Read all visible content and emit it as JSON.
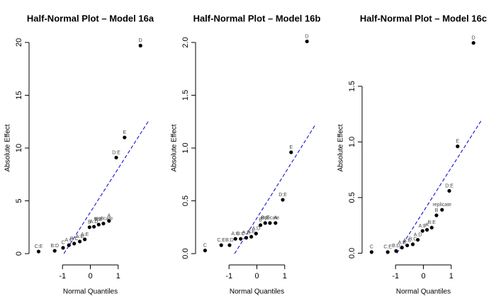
{
  "chart_data": [
    {
      "type": "scatter",
      "title": "Half-Normal Plot – Model 16a",
      "xlabel": "Normal Quantiles",
      "ylabel": "Absolute Effect",
      "x": [
        -1.86,
        -1.28,
        -0.98,
        -0.77,
        -0.58,
        -0.38,
        -0.2,
        -0.03,
        0.13,
        0.3,
        0.47,
        0.67,
        0.93,
        1.23,
        1.8
      ],
      "y": [
        0.2,
        0.27,
        0.55,
        0.8,
        0.95,
        1.15,
        1.35,
        2.5,
        2.55,
        2.75,
        2.85,
        3.1,
        9.1,
        11.0,
        19.7
      ],
      "labels": [
        "C:E",
        "B:D",
        "C",
        "A:C",
        "B:C",
        "A:B",
        "A:E",
        "B",
        "A:D",
        "B:E",
        "replicate",
        "A",
        "D:E",
        "E",
        "D"
      ],
      "color": "#000000",
      "xlim": [
        -2.1,
        2.1
      ],
      "ylim": [
        -0.8,
        20.8
      ],
      "xticks": [
        -1,
        0,
        1
      ],
      "yticks": [
        0,
        5,
        10,
        15,
        20
      ],
      "ref_line": {
        "x": [
          -0.95,
          2.1
        ],
        "y": [
          0,
          12.6
        ],
        "color": "#0000cc"
      }
    },
    {
      "type": "scatter",
      "title": "Half-Normal Plot – Model 16b",
      "xlabel": "Normal Quantiles",
      "ylabel": "Absolute Effect",
      "x": [
        -1.86,
        -1.28,
        -0.98,
        -0.77,
        -0.58,
        -0.38,
        -0.2,
        -0.03,
        0.13,
        0.3,
        0.47,
        0.67,
        0.93,
        1.23,
        1.8
      ],
      "y": [
        0.03,
        0.08,
        0.08,
        0.14,
        0.14,
        0.15,
        0.16,
        0.19,
        0.27,
        0.29,
        0.29,
        0.29,
        0.51,
        0.96,
        2.01
      ],
      "labels": [
        "C",
        "C:E",
        "B:D",
        "A:C",
        "B:C",
        "A:B",
        "A:E",
        "A:D",
        "B",
        "B:E",
        "replicate",
        "A",
        "D:E",
        "E",
        "D"
      ],
      "color": "#000000",
      "xlim": [
        -2.1,
        2.1
      ],
      "ylim": [
        -0.08,
        2.08
      ],
      "xticks": [
        -1,
        0,
        1
      ],
      "yticks": [
        {
          "value": 0,
          "label": "0.0"
        },
        0.5,
        {
          "value": 1,
          "label": "1.0"
        },
        1.5,
        {
          "value": 2,
          "label": "2.0"
        }
      ],
      "ref_line": {
        "x": [
          -0.8,
          2.1
        ],
        "y": [
          0,
          1.22
        ],
        "color": "#0000cc"
      }
    },
    {
      "type": "scatter",
      "title": "Half-Normal Plot – Model 16c",
      "xlabel": "Normal Quantiles",
      "ylabel": "Absolute Effect",
      "x": [
        -1.86,
        -1.28,
        -0.98,
        -0.77,
        -0.58,
        -0.38,
        -0.2,
        -0.03,
        0.13,
        0.3,
        0.47,
        0.67,
        0.93,
        1.23,
        1.8
      ],
      "y": [
        0.01,
        0.01,
        0.02,
        0.05,
        0.07,
        0.08,
        0.12,
        0.2,
        0.21,
        0.23,
        0.34,
        0.39,
        0.56,
        0.96,
        1.89
      ],
      "labels": [
        "C",
        "C:E",
        "B:D",
        "A:B",
        "A:C",
        "B:C",
        "A:D",
        "A:E",
        "A",
        "B:E",
        "B",
        "replicate",
        "D:E",
        "E",
        "D"
      ],
      "color": "#000000",
      "xlim": [
        -2.1,
        2.1
      ],
      "ylim": [
        -0.08,
        1.97
      ],
      "xticks": [
        -1,
        0,
        1
      ],
      "yticks": [
        {
          "value": 0,
          "label": "0.0"
        },
        0.5,
        {
          "value": 1,
          "label": "1.0"
        },
        1.5
      ],
      "ref_line": {
        "x": [
          -0.95,
          2.1
        ],
        "y": [
          0,
          1.2
        ],
        "color": "#0000cc"
      }
    }
  ]
}
